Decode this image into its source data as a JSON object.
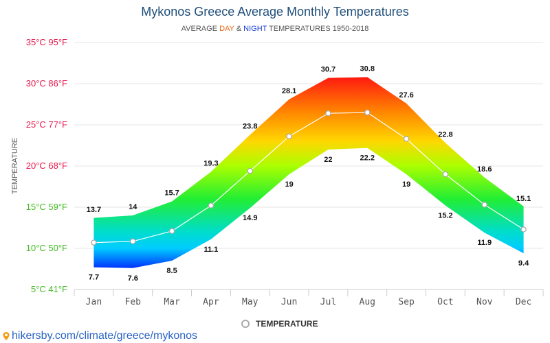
{
  "header": {
    "title": "Mykonos Greece Average Monthly Temperatures",
    "subtitle_prefix": "AVERAGE ",
    "subtitle_day": "DAY",
    "subtitle_amp": " & ",
    "subtitle_night": "NIGHT",
    "subtitle_suffix": " TEMPERATURES 1950-2018"
  },
  "legend": {
    "label": "TEMPERATURE"
  },
  "footer": {
    "source": "hikersby.com/climate/greece/mykonos"
  },
  "colors": {
    "day_word": "#e8671b",
    "night_word": "#1a3fd6",
    "title": "#1f4e79",
    "source_link": "#2a63c4",
    "average_line": "#ffffff",
    "average_marker_stroke": "#aaaaaa",
    "gradient_stops": [
      {
        "temp": 30.8,
        "color": "#ff1a10"
      },
      {
        "temp": 26.5,
        "color": "#ff8800"
      },
      {
        "temp": 23,
        "color": "#ffd700"
      },
      {
        "temp": 20,
        "color": "#aaff00"
      },
      {
        "temp": 16,
        "color": "#22ee33"
      },
      {
        "temp": 12,
        "color": "#00ddcc"
      },
      {
        "temp": 10,
        "color": "#00ccff"
      },
      {
        "temp": 7.6,
        "color": "#0033ff"
      }
    ]
  },
  "chart_data": {
    "type": "area",
    "title": "Mykonos Greece Average Monthly Temperatures",
    "subtitle": "AVERAGE DAY & NIGHT TEMPERATURES 1950-2018",
    "ylabel": "TEMPERATURE",
    "xlabel": "",
    "categories": [
      "Jan",
      "Feb",
      "Mar",
      "Apr",
      "May",
      "Jun",
      "Jul",
      "Aug",
      "Sep",
      "Oct",
      "Nov",
      "Dec"
    ],
    "ylim": [
      5,
      35
    ],
    "y_ticks": [
      {
        "value": 35,
        "label": "35°C 95°F",
        "color": "#e6194b"
      },
      {
        "value": 30,
        "label": "30°C 86°F",
        "color": "#e6194b"
      },
      {
        "value": 25,
        "label": "25°C 77°F",
        "color": "#e6194b"
      },
      {
        "value": 20,
        "label": "20°C 68°F",
        "color": "#e6194b"
      },
      {
        "value": 15,
        "label": "15°C 59°F",
        "color": "#44bb22"
      },
      {
        "value": 10,
        "label": "10°C 50°F",
        "color": "#44bb22"
      },
      {
        "value": 5,
        "label": "5°C 41°F",
        "color": "#44bb22"
      }
    ],
    "grid": true,
    "legend_position": "bottom-center",
    "series": [
      {
        "role": "day",
        "values": [
          13.7,
          14,
          15.7,
          19.3,
          23.8,
          28.1,
          30.7,
          30.8,
          27.6,
          22.8,
          18.6,
          15.1
        ]
      },
      {
        "role": "night",
        "values": [
          7.7,
          7.6,
          8.5,
          11.1,
          14.9,
          19,
          22,
          22.2,
          19,
          15.2,
          11.9,
          9.4
        ]
      },
      {
        "name": "TEMPERATURE",
        "role": "average",
        "values": [
          10.7,
          10.85,
          12.1,
          15.2,
          19.4,
          23.6,
          26.4,
          26.5,
          23.3,
          19,
          15.3,
          12.3
        ]
      }
    ]
  }
}
